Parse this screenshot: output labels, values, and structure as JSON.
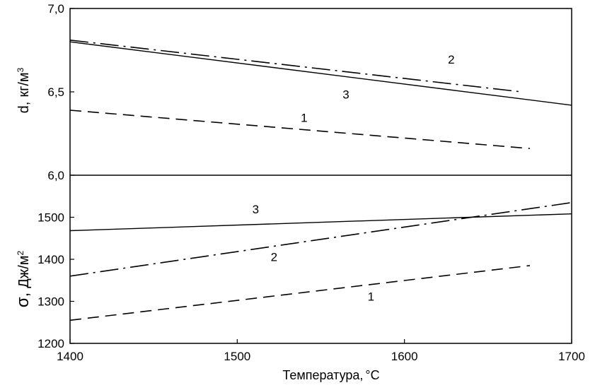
{
  "chart_data": [
    {
      "type": "line",
      "ylabel_main": "d,",
      "ylabel_unit": "кг/м",
      "ylabel_sup": "3",
      "xlim": [
        1400,
        1700
      ],
      "ylim": [
        6.0,
        7.0
      ],
      "y_tick_labels": [
        "6,0",
        "6,5",
        "7,0"
      ],
      "y_ticks": [
        6.0,
        6.5,
        7.0
      ],
      "series": [
        {
          "label": "1",
          "style": "dashed",
          "x": [
            1400,
            1675
          ],
          "y": [
            6.39,
            6.16
          ]
        },
        {
          "label": "2",
          "style": "dash-dot",
          "x": [
            1400,
            1670
          ],
          "y": [
            6.81,
            6.5
          ]
        },
        {
          "label": "3",
          "style": "solid",
          "x": [
            1400,
            1700
          ],
          "y": [
            6.8,
            6.42
          ]
        }
      ],
      "curve_labels": [
        {
          "text": "1",
          "x": 1540,
          "y": 6.32
        },
        {
          "text": "2",
          "x": 1628,
          "y": 6.67
        },
        {
          "text": "3",
          "x": 1565,
          "y": 6.46
        }
      ],
      "grid": false
    },
    {
      "type": "line",
      "ylabel_main": "σ,",
      "ylabel_unit": "Дж/м",
      "ylabel_sup": "2",
      "xlabel": "Температура,",
      "xlabel_unit": "°С",
      "xlim": [
        1400,
        1700
      ],
      "ylim": [
        1200,
        1600
      ],
      "x_tick_labels": [
        "1400",
        "1500",
        "1600",
        "1700"
      ],
      "x_ticks": [
        1400,
        1500,
        1600,
        1700
      ],
      "y_tick_labels": [
        "1200",
        "1300",
        "1400",
        "1500"
      ],
      "y_ticks": [
        1200,
        1300,
        1400,
        1500
      ],
      "series": [
        {
          "label": "1",
          "style": "dashed",
          "x": [
            1400,
            1675
          ],
          "y": [
            1255,
            1385
          ]
        },
        {
          "label": "2",
          "style": "dash-dot",
          "x": [
            1400,
            1700
          ],
          "y": [
            1360,
            1535
          ]
        },
        {
          "label": "3",
          "style": "solid",
          "x": [
            1400,
            1700
          ],
          "y": [
            1468,
            1508
          ]
        }
      ],
      "curve_labels": [
        {
          "text": "1",
          "x": 1580,
          "y": 1302
        },
        {
          "text": "2",
          "x": 1522,
          "y": 1396
        },
        {
          "text": "3",
          "x": 1511,
          "y": 1509
        }
      ],
      "grid": false
    }
  ]
}
